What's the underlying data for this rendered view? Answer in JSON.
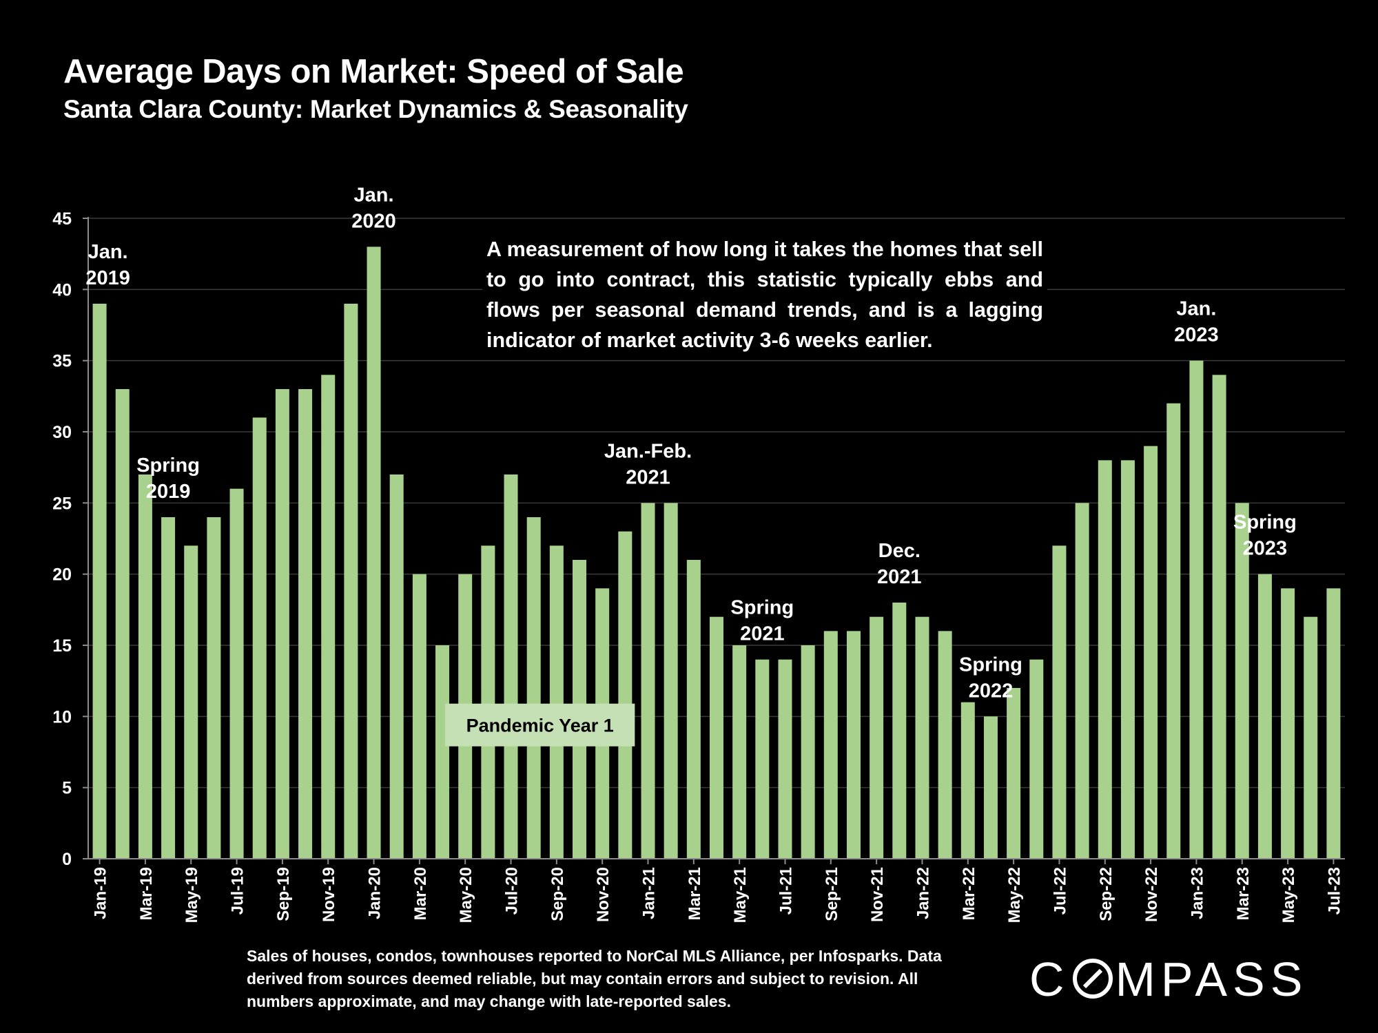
{
  "chart_data": {
    "type": "bar",
    "title": "Average Days on Market: Speed of Sale",
    "subtitle": "Santa Clara County: Market Dynamics & Seasonality",
    "xlabel": "",
    "ylabel": "",
    "ylim": [
      0,
      45
    ],
    "yticks": [
      0,
      5,
      10,
      15,
      20,
      25,
      30,
      35,
      40,
      45
    ],
    "grid": true,
    "bar_color": "#a9d18e",
    "categories": [
      "Jan-19",
      "Feb-19",
      "Mar-19",
      "Apr-19",
      "May-19",
      "Jun-19",
      "Jul-19",
      "Aug-19",
      "Sep-19",
      "Oct-19",
      "Nov-19",
      "Dec-19",
      "Jan-20",
      "Feb-20",
      "Mar-20",
      "Apr-20",
      "May-20",
      "Jun-20",
      "Jul-20",
      "Aug-20",
      "Sep-20",
      "Oct-20",
      "Nov-20",
      "Dec-20",
      "Jan-21",
      "Feb-21",
      "Mar-21",
      "Apr-21",
      "May-21",
      "Jun-21",
      "Jul-21",
      "Aug-21",
      "Sep-21",
      "Oct-21",
      "Nov-21",
      "Dec-21",
      "Jan-22",
      "Feb-22",
      "Mar-22",
      "Apr-22",
      "May-22",
      "Jun-22",
      "Jul-22",
      "Aug-22",
      "Sep-22",
      "Oct-22",
      "Nov-22",
      "Dec-22",
      "Jan-23",
      "Feb-23",
      "Mar-23",
      "Apr-23",
      "May-23",
      "Jun-23",
      "Jul-23"
    ],
    "visible_tick_labels": [
      "Jan-19",
      "Mar-19",
      "May-19",
      "Jul-19",
      "Sep-19",
      "Nov-19",
      "Jan-20",
      "Mar-20",
      "May-20",
      "Jul-20",
      "Sep-20",
      "Nov-20",
      "Jan-21",
      "Mar-21",
      "May-21",
      "Jul-21",
      "Sep-21",
      "Nov-21",
      "Jan-22",
      "Mar-22",
      "May-22",
      "Jul-22",
      "Sep-22",
      "Nov-22",
      "Jan-23",
      "Mar-23",
      "May-23",
      "Jul-23"
    ],
    "values": [
      39,
      33,
      27,
      24,
      22,
      24,
      26,
      31,
      33,
      33,
      34,
      39,
      43,
      27,
      20,
      15,
      20,
      22,
      27,
      24,
      22,
      21,
      19,
      23,
      25,
      25,
      21,
      17,
      15,
      14,
      14,
      15,
      16,
      16,
      17,
      18,
      17,
      16,
      11,
      10,
      12,
      14,
      22,
      25,
      28,
      28,
      29,
      32,
      35,
      34,
      25,
      20,
      19,
      17,
      19
    ],
    "annotations": [
      {
        "text": [
          "Jan.",
          "2019"
        ],
        "category": "Jan-19"
      },
      {
        "text": [
          "Spring",
          "2019"
        ],
        "category": "Apr-19"
      },
      {
        "text": [
          "Jan.",
          "2020"
        ],
        "category": "Jan-20"
      },
      {
        "text": [
          "Jan.-Feb.",
          "2021"
        ],
        "category": "Jan-21"
      },
      {
        "text": [
          "Spring",
          "2021"
        ],
        "category": "Jun-21"
      },
      {
        "text": [
          "Dec.",
          "2021"
        ],
        "category": "Dec-21"
      },
      {
        "text": [
          "Spring",
          "2022"
        ],
        "category": "Apr-22"
      },
      {
        "text": [
          "Jan.",
          "2023"
        ],
        "category": "Jan-23"
      },
      {
        "text": [
          "Spring",
          "2023"
        ],
        "category": "Apr-23"
      }
    ],
    "callout_label": "Pandemic Year 1",
    "callout_color": "#c5e0b4"
  },
  "description": "A measurement of how long it takes the homes that sell to go into contract, this statistic typically ebbs and flows per seasonal demand trends, and is a lagging indicator of market activity 3-6 weeks earlier.",
  "footnote": "Sales of houses, condos, townhouses reported to NorCal MLS Alliance, per Infosparks. Data derived from sources deemed reliable, but may contain errors and subject to revision. All numbers approximate, and may change with late-reported sales.",
  "brand": {
    "before": "C",
    "after": "MPASS",
    "full": "COMPASS"
  }
}
